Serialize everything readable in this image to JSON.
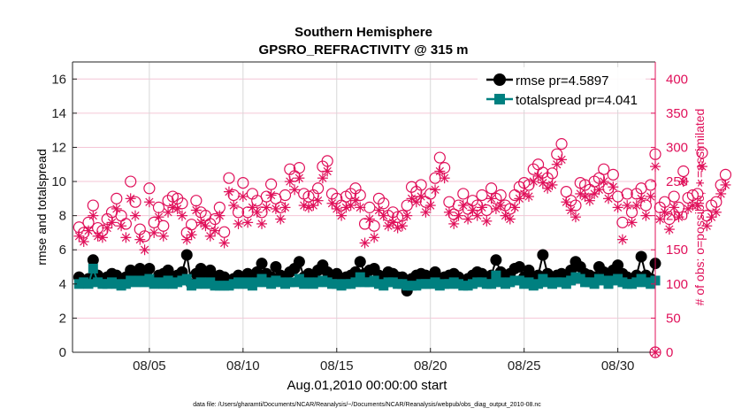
{
  "chart_data": {
    "type": "line",
    "title": [
      "Southern Hemisphere",
      "GPSRO_REFRACTIVITY @ 315 m"
    ],
    "xlabel": "Aug.01,2010 00:00:00 start",
    "ylabel": "rmse and totalspread",
    "ylabel_right": "# of obs: o=possible; ∗=assimilated",
    "footer": "data file: /Users/gharamti/Documents/NCAR/Reanalysis/~/Documents/NCAR/Reanalysis/webpub/obs_diag_output_2010-08.nc",
    "xlim": [
      0.9,
      32
    ],
    "ylim": [
      0,
      17
    ],
    "ylim_right": [
      0,
      425
    ],
    "x_ticks": [
      {
        "v": 5,
        "label": "08/05"
      },
      {
        "v": 10,
        "label": "08/10"
      },
      {
        "v": 15,
        "label": "08/15"
      },
      {
        "v": 20,
        "label": "08/20"
      },
      {
        "v": 25,
        "label": "08/25"
      },
      {
        "v": 30,
        "label": "08/30"
      }
    ],
    "y_ticks": [
      0,
      2,
      4,
      6,
      8,
      10,
      12,
      14,
      16
    ],
    "y_ticks_right": [
      0,
      50,
      100,
      150,
      200,
      250,
      300,
      350,
      400
    ],
    "x_start": 1.25,
    "x_step": 0.25,
    "legend": {
      "placement": "top-right",
      "entries": [
        "rmse pr=4.5897",
        "totalspread pr=4.041"
      ]
    },
    "colors": {
      "rmse": "#000000",
      "totalspread": "#008080",
      "obs": "#e0105a"
    },
    "series": [
      {
        "name": "rmse",
        "values": [
          4.4,
          4.2,
          4.3,
          5.4,
          4.5,
          4.3,
          4.4,
          4.6,
          4.5,
          4.2,
          4.4,
          4.8,
          4.6,
          4.9,
          4.7,
          4.9,
          4.1,
          4.5,
          4.6,
          4.8,
          4.3,
          4.5,
          4.7,
          5.7,
          4.0,
          4.6,
          4.9,
          4.4,
          4.8,
          4.3,
          4.5,
          4.4,
          4.2,
          4.3,
          4.5,
          4.4,
          4.6,
          4.2,
          4.7,
          5.2,
          4.6,
          4.4,
          5.0,
          4.5,
          4.3,
          4.7,
          4.9,
          5.3,
          4.4,
          4.6,
          4.5,
          4.8,
          5.1,
          4.7,
          4.5,
          4.6,
          4.3,
          4.4,
          4.5,
          4.7,
          5.3,
          4.6,
          4.8,
          4.9,
          4.5,
          4.3,
          4.7,
          4.6,
          4.4,
          4.4,
          3.6,
          4.3,
          4.5,
          4.6,
          4.5,
          4.4,
          4.7,
          4.3,
          4.4,
          4.5,
          4.6,
          4.4,
          4.2,
          4.3,
          4.5,
          4.7,
          4.6,
          4.4,
          4.5,
          5.4,
          4.7,
          4.5,
          4.6,
          4.9,
          5.0,
          4.4,
          4.8,
          4.3,
          4.5,
          5.7,
          4.6,
          4.4,
          4.5,
          4.6,
          4.3,
          4.8,
          5.3,
          5.0,
          4.6,
          4.5,
          4.4,
          5.0,
          4.7,
          4.3,
          4.8,
          5.1,
          4.6,
          4.4,
          4.2,
          4.5,
          5.6,
          4.5,
          4.3,
          5.2
        ]
      },
      {
        "name": "totalspread",
        "values": [
          4.0,
          4.1,
          4.0,
          4.9,
          4.1,
          4.0,
          4.0,
          4.1,
          4.0,
          3.9,
          4.0,
          4.2,
          4.1,
          4.2,
          4.1,
          4.3,
          4.0,
          4.1,
          4.0,
          4.2,
          4.0,
          4.1,
          4.2,
          4.3,
          3.9,
          4.0,
          4.1,
          4.0,
          4.1,
          3.9,
          3.9,
          3.9,
          3.9,
          4.0,
          4.1,
          4.0,
          4.1,
          3.9,
          4.1,
          4.3,
          4.1,
          4.0,
          4.2,
          4.1,
          4.0,
          4.1,
          4.1,
          4.3,
          4.0,
          4.1,
          4.0,
          4.1,
          4.2,
          4.1,
          4.0,
          4.0,
          3.9,
          4.0,
          4.0,
          4.1,
          4.4,
          4.1,
          4.1,
          4.2,
          4.0,
          3.9,
          4.1,
          4.1,
          4.0,
          4.0,
          3.9,
          3.9,
          3.9,
          4.0,
          4.0,
          4.0,
          4.1,
          3.9,
          4.0,
          4.0,
          4.1,
          4.0,
          3.9,
          3.9,
          4.0,
          4.1,
          4.1,
          4.0,
          4.0,
          4.5,
          4.1,
          4.0,
          4.1,
          4.2,
          4.2,
          4.0,
          4.1,
          3.9,
          4.0,
          4.3,
          4.1,
          4.0,
          4.1,
          4.1,
          4.0,
          4.2,
          4.4,
          4.3,
          4.1,
          4.1,
          4.0,
          4.3,
          4.2,
          4.0,
          4.2,
          4.3,
          4.1,
          4.0,
          4.0,
          4.1,
          4.3,
          4.1,
          4.0,
          4.2
        ]
      },
      {
        "name": "possible",
        "axis": "right",
        "values": [
          183,
          175,
          190,
          215,
          182,
          178,
          195,
          205,
          225,
          200,
          188,
          250,
          220,
          180,
          170,
          240,
          190,
          212,
          185,
          222,
          228,
          225,
          218,
          175,
          187,
          222,
          205,
          200,
          188,
          195,
          212,
          176,
          255,
          230,
          205,
          248,
          205,
          232,
          222,
          205,
          228,
          246,
          225,
          212,
          230,
          268,
          258,
          270,
          232,
          228,
          230,
          240,
          272,
          280,
          232,
          225,
          215,
          228,
          232,
          240,
          230,
          188,
          212,
          185,
          225,
          218,
          200,
          205,
          198,
          200,
          215,
          242,
          235,
          245,
          220,
          232,
          255,
          285,
          270,
          220,
          202,
          215,
          232,
          210,
          222,
          215,
          230,
          208,
          240,
          225,
          230,
          215,
          210,
          230,
          242,
          248,
          245,
          268,
          275,
          263,
          255,
          262,
          290,
          305,
          235,
          222,
          215,
          248,
          245,
          238,
          250,
          255,
          268,
          240,
          260,
          228,
          190,
          232,
          205,
          232,
          240,
          215,
          245,
          290,
          212,
          220,
          195,
          228,
          212,
          265,
          226,
          230,
          232,
          292,
          200,
          215,
          220,
          245,
          260
        ]
      },
      {
        "name": "assimilated",
        "axis": "right",
        "values": [
          170,
          162,
          178,
          200,
          170,
          168,
          182,
          190,
          210,
          185,
          168,
          225,
          200,
          165,
          150,
          220,
          175,
          198,
          170,
          205,
          212,
          210,
          200,
          165,
          172,
          208,
          190,
          185,
          170,
          178,
          200,
          160,
          235,
          215,
          188,
          228,
          190,
          212,
          205,
          188,
          212,
          230,
          210,
          195,
          212,
          250,
          238,
          255,
          215,
          212,
          215,
          222,
          255,
          265,
          218,
          210,
          200,
          212,
          215,
          222,
          212,
          160,
          195,
          168,
          208,
          200,
          185,
          190,
          182,
          185,
          200,
          225,
          220,
          228,
          205,
          215,
          238,
          265,
          255,
          205,
          188,
          200,
          215,
          195,
          208,
          200,
          212,
          192,
          225,
          210,
          215,
          200,
          195,
          212,
          225,
          232,
          228,
          250,
          258,
          248,
          240,
          245,
          275,
          282,
          220,
          208,
          198,
          232,
          228,
          222,
          232,
          238,
          250,
          225,
          242,
          212,
          165,
          215,
          190,
          215,
          225,
          200,
          228,
          272,
          195,
          205,
          180,
          212,
          198,
          250,
          210,
          215,
          215,
          272,
          185,
          198,
          205,
          232,
          245
        ]
      },
      {
        "name": "zero-obs",
        "axis": "right",
        "points": [
          [
            32,
            0
          ]
        ]
      }
    ]
  }
}
